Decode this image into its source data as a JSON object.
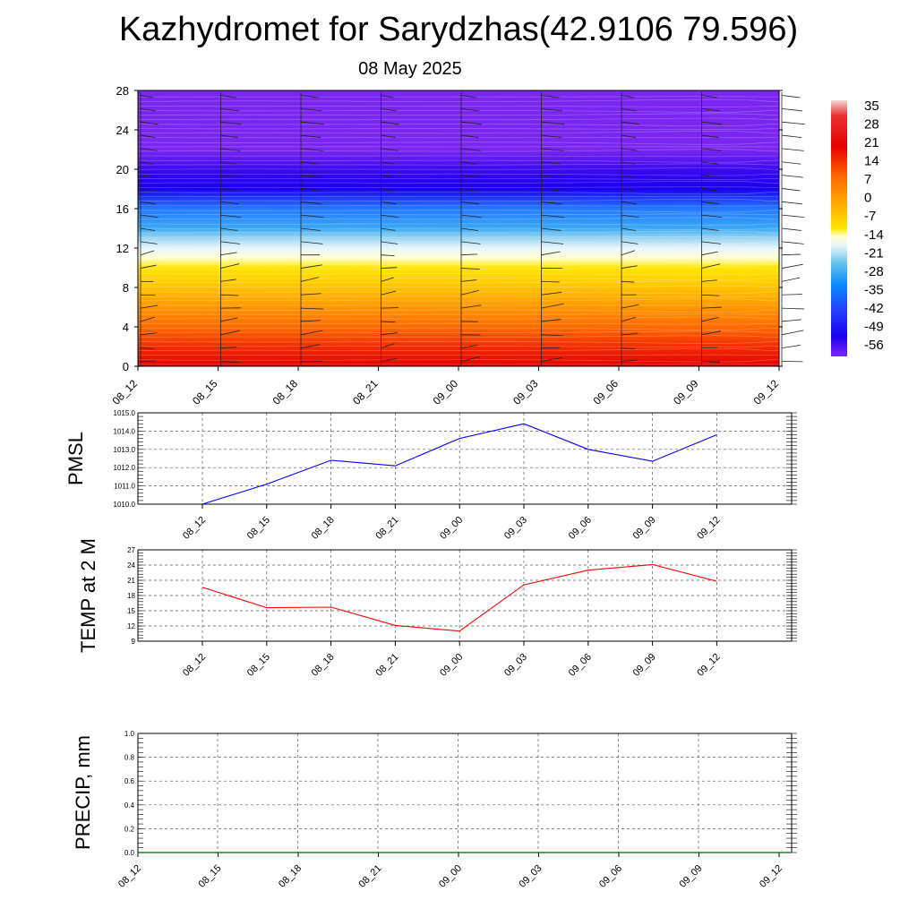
{
  "title": "Kazhydromet for Sarydzhas(42.9106 79.596)",
  "subtitle": "08 May 2025",
  "chart_data": [
    {
      "type": "heatmap",
      "name_hint": "temperature-cross-section",
      "y": [
        0,
        4,
        8,
        12,
        16,
        20,
        24,
        28
      ],
      "ylim": [
        0,
        28
      ],
      "x_categories": [
        "08_12",
        "08_15",
        "08_18",
        "08_21",
        "09_00",
        "09_03",
        "09_06",
        "09_09",
        "09_12"
      ],
      "profile_levels": [
        0,
        2,
        4,
        6,
        8,
        10,
        11,
        12,
        13,
        14,
        16,
        18,
        20,
        22,
        24,
        28
      ],
      "profile_values": [
        21,
        18,
        14,
        9,
        4,
        0,
        -7,
        -14,
        -18,
        -24,
        -35,
        -49,
        -56,
        -60,
        -60,
        -60
      ],
      "colorbar": {
        "labels": [
          "35",
          "28",
          "21",
          "14",
          "7",
          "0",
          "-7",
          "-14",
          "-21",
          "-28",
          "-35",
          "-42",
          "-49",
          "-56"
        ],
        "values": [
          35,
          28,
          21,
          14,
          7,
          0,
          -7,
          -14,
          -21,
          -28,
          -35,
          -42,
          -49,
          -56
        ]
      },
      "wind_barb_columns": [
        "08_12",
        "08_15",
        "08_18",
        "08_21",
        "09_00",
        "09_03",
        "09_06",
        "09_09",
        "09_12"
      ]
    },
    {
      "type": "line",
      "ylabel": "PMSL",
      "categories": [
        "08_12",
        "08_15",
        "08_18",
        "08_21",
        "09_00",
        "09_03",
        "09_06",
        "09_09",
        "09_12"
      ],
      "series": [
        {
          "values": [
            1010.0,
            1011.1,
            1012.4,
            1012.1,
            1013.6,
            1014.4,
            1013.0,
            1012.35,
            1013.8
          ],
          "color": "#0000ff"
        }
      ],
      "ylim": [
        1010.0,
        1015.0
      ],
      "yticks": [
        "1010.0",
        "1011.0",
        "1012.0",
        "1013.0",
        "1014.0",
        "1015.0"
      ],
      "grid": true
    },
    {
      "type": "line",
      "ylabel": "TEMP at 2 M",
      "categories": [
        "08_12",
        "08_15",
        "08_18",
        "08_21",
        "09_00",
        "09_03",
        "09_06",
        "09_09",
        "09_12"
      ],
      "series": [
        {
          "values": [
            19.6,
            15.6,
            15.7,
            12.1,
            11.0,
            20.1,
            23.0,
            24.1,
            20.8
          ],
          "color": "#ff0000"
        }
      ],
      "ylim": [
        9,
        27
      ],
      "yticks": [
        "9",
        "12",
        "15",
        "18",
        "21",
        "24",
        "27"
      ],
      "grid": true
    },
    {
      "type": "line",
      "ylabel": "PRECIP, mm",
      "categories": [
        "08_12",
        "08_15",
        "08_18",
        "08_21",
        "09_00",
        "09_03",
        "09_06",
        "09_09",
        "09_12"
      ],
      "series": [
        {
          "values": [
            0,
            0,
            0,
            0,
            0,
            0,
            0,
            0,
            0
          ],
          "color": "#006400"
        }
      ],
      "ylim": [
        0,
        1.0
      ],
      "yticks": [
        "0.0",
        "0.2",
        "0.4",
        "0.6",
        "0.8",
        "1.0"
      ],
      "grid": true
    }
  ]
}
